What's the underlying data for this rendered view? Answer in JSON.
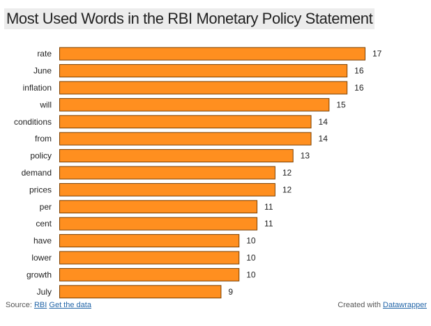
{
  "chart_data": {
    "type": "bar",
    "orientation": "horizontal",
    "title": "Most Used Words in the RBI Monetary Policy Statement",
    "categories": [
      "rate",
      "June",
      "inflation",
      "will",
      "conditions",
      "from",
      "policy",
      "demand",
      "prices",
      "per",
      "cent",
      "have",
      "lower",
      "growth",
      "July"
    ],
    "values": [
      17,
      16,
      16,
      15,
      14,
      14,
      13,
      12,
      12,
      11,
      11,
      10,
      10,
      10,
      9
    ],
    "xlim": [
      0,
      17
    ],
    "grid": false,
    "bar_color": "#ff8f1f",
    "bar_edge_color": "#7a3f00"
  },
  "footer": {
    "source_label": "Source:",
    "source_link": "RBI",
    "data_link": "Get the data",
    "created_label": "Created with",
    "created_link": "Datawrapper"
  },
  "colors": {
    "link": "#2265a8",
    "title_bg": "#ececec"
  }
}
